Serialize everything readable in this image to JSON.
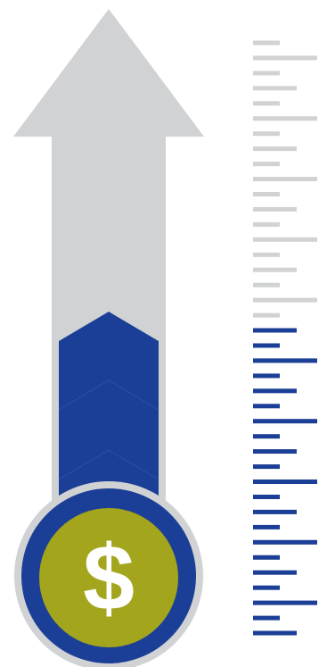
{
  "icon": {
    "symbol": "$"
  }
}
